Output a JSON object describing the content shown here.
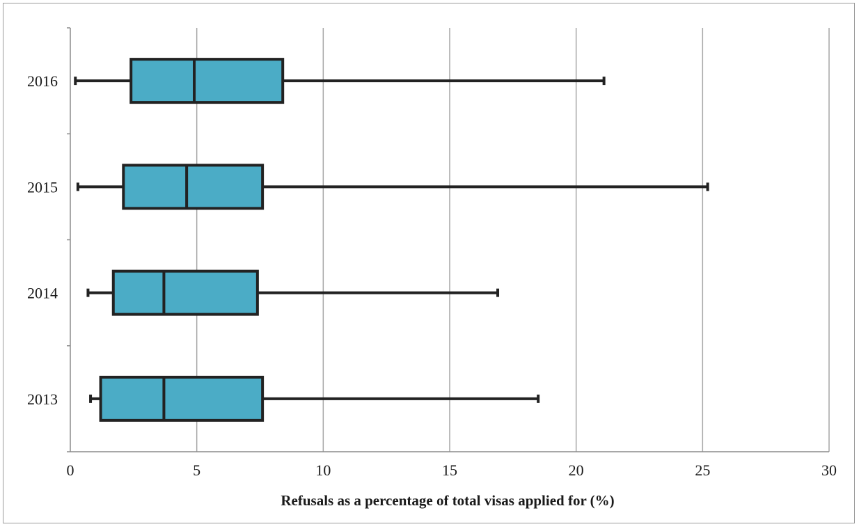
{
  "chart_data": {
    "type": "boxplot",
    "orientation": "horizontal",
    "title": "",
    "xlabel": "Refusals as a percentage of total visas applied for (%)",
    "ylabel": "",
    "xlim": [
      0,
      30
    ],
    "x_ticks": [
      0,
      5,
      10,
      15,
      20,
      25,
      30
    ],
    "grid": "vertical",
    "legend": "none",
    "box_color": "#4bacc6",
    "edge_color": "#222222",
    "grid_color": "#a6a6a6",
    "categories": [
      "2016",
      "2015",
      "2014",
      "2013"
    ],
    "boxes": [
      {
        "label": "2016",
        "min": 0.2,
        "q1": 2.4,
        "median": 4.9,
        "q3": 8.4,
        "max": 21.1
      },
      {
        "label": "2015",
        "min": 0.3,
        "q1": 2.1,
        "median": 4.6,
        "q3": 7.6,
        "max": 25.2
      },
      {
        "label": "2014",
        "min": 0.7,
        "q1": 1.7,
        "median": 3.7,
        "q3": 7.4,
        "max": 16.9
      },
      {
        "label": "2013",
        "min": 0.8,
        "q1": 1.2,
        "median": 3.7,
        "q3": 7.6,
        "max": 18.5
      }
    ]
  }
}
